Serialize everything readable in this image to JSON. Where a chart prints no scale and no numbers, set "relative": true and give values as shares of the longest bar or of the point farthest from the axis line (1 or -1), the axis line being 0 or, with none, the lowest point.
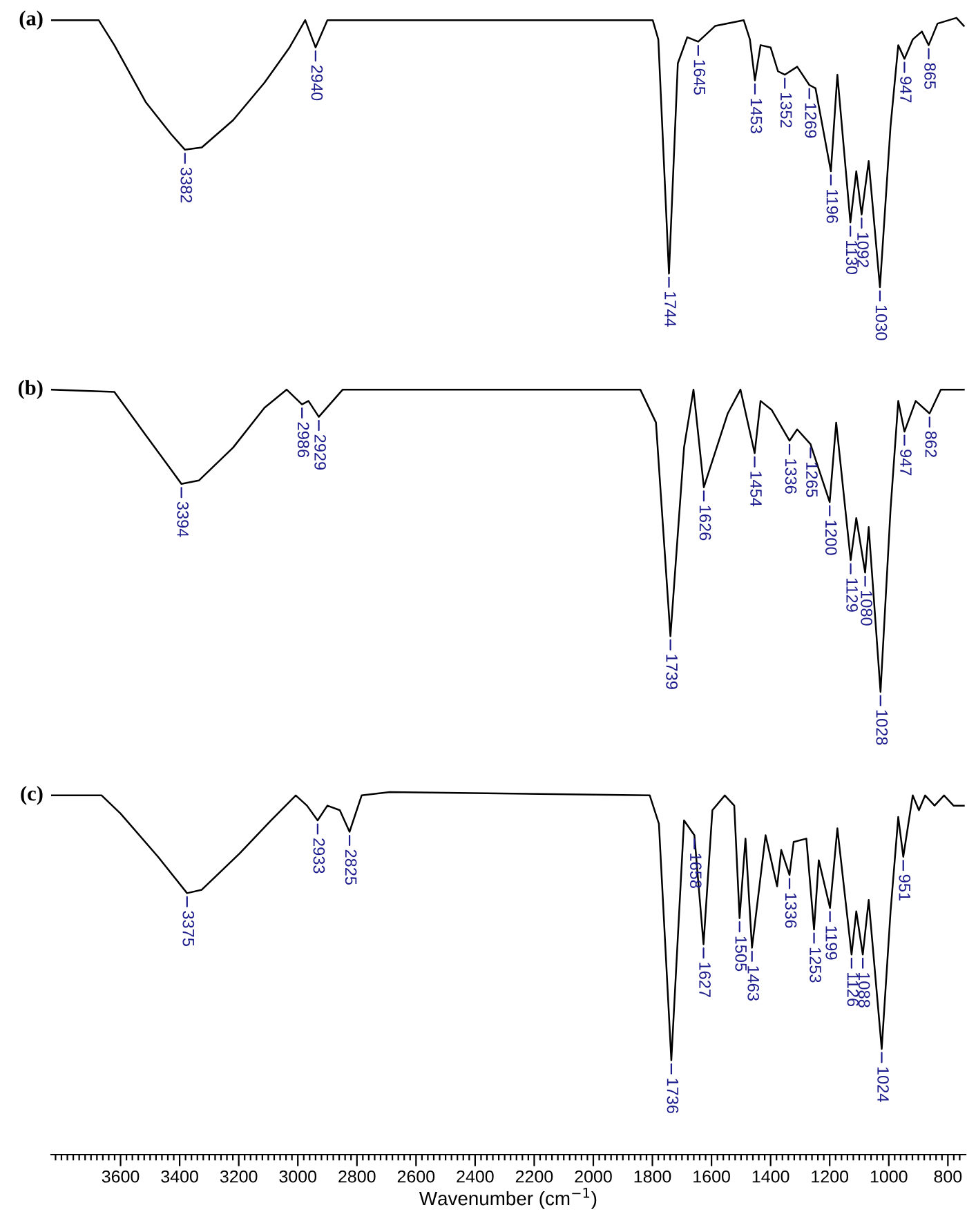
{
  "chart_data": {
    "type": "line",
    "relative": true,
    "tick_labels": "x",
    "grid": false,
    "legend": false,
    "marker": "none",
    "line_style": "solid",
    "xlabel": "Wavenumber (cm$^{−1}$)",
    "xlim": [
      3835,
      740
    ],
    "xticks": [
      {
        "value": 760,
        "label": null
      },
      {
        "value": 780,
        "label": null
      },
      800,
      {
        "value": 820,
        "label": null
      },
      {
        "value": 840,
        "label": null
      },
      {
        "value": 860,
        "label": null
      },
      {
        "value": 880,
        "label": null
      },
      {
        "value": 900,
        "label": null
      },
      {
        "value": 920,
        "label": null
      },
      {
        "value": 940,
        "label": null
      },
      {
        "value": 960,
        "label": null
      },
      {
        "value": 980,
        "label": null
      },
      1000,
      {
        "value": 1020,
        "label": null
      },
      {
        "value": 1040,
        "label": null
      },
      {
        "value": 1060,
        "label": null
      },
      {
        "value": 1080,
        "label": null
      },
      {
        "value": 1100,
        "label": null
      },
      {
        "value": 1120,
        "label": null
      },
      {
        "value": 1140,
        "label": null
      },
      {
        "value": 1160,
        "label": null
      },
      {
        "value": 1180,
        "label": null
      },
      1200,
      {
        "value": 1220,
        "label": null
      },
      {
        "value": 1240,
        "label": null
      },
      {
        "value": 1260,
        "label": null
      },
      {
        "value": 1280,
        "label": null
      },
      {
        "value": 1300,
        "label": null
      },
      {
        "value": 1320,
        "label": null
      },
      {
        "value": 1340,
        "label": null
      },
      {
        "value": 1360,
        "label": null
      },
      {
        "value": 1380,
        "label": null
      },
      1400,
      {
        "value": 1420,
        "label": null
      },
      {
        "value": 1440,
        "label": null
      },
      {
        "value": 1460,
        "label": null
      },
      {
        "value": 1480,
        "label": null
      },
      {
        "value": 1500,
        "label": null
      },
      {
        "value": 1520,
        "label": null
      },
      {
        "value": 1540,
        "label": null
      },
      {
        "value": 1560,
        "label": null
      },
      {
        "value": 1580,
        "label": null
      },
      1600,
      {
        "value": 1620,
        "label": null
      },
      {
        "value": 1640,
        "label": null
      },
      {
        "value": 1660,
        "label": null
      },
      {
        "value": 1680,
        "label": null
      },
      {
        "value": 1700,
        "label": null
      },
      {
        "value": 1720,
        "label": null
      },
      {
        "value": 1740,
        "label": null
      },
      {
        "value": 1760,
        "label": null
      },
      {
        "value": 1780,
        "label": null
      },
      1800,
      {
        "value": 1820,
        "label": null
      },
      {
        "value": 1840,
        "label": null
      },
      {
        "value": 1860,
        "label": null
      },
      {
        "value": 1880,
        "label": null
      },
      {
        "value": 1900,
        "label": null
      },
      {
        "value": 1920,
        "label": null
      },
      {
        "value": 1940,
        "label": null
      },
      {
        "value": 1960,
        "label": null
      },
      {
        "value": 1980,
        "label": null
      },
      2000,
      {
        "value": 2020,
        "label": null
      },
      {
        "value": 2040,
        "label": null
      },
      {
        "value": 2060,
        "label": null
      },
      {
        "value": 2080,
        "label": null
      },
      {
        "value": 2100,
        "label": null
      },
      {
        "value": 2120,
        "label": null
      },
      {
        "value": 2140,
        "label": null
      },
      {
        "value": 2160,
        "label": null
      },
      {
        "value": 2180,
        "label": null
      },
      2200,
      {
        "value": 2220,
        "label": null
      },
      {
        "value": 2240,
        "label": null
      },
      {
        "value": 2260,
        "label": null
      },
      {
        "value": 2280,
        "label": null
      },
      {
        "value": 2300,
        "label": null
      },
      {
        "value": 2320,
        "label": null
      },
      {
        "value": 2340,
        "label": null
      },
      {
        "value": 2360,
        "label": null
      },
      {
        "value": 2380,
        "label": null
      },
      2400,
      {
        "value": 2420,
        "label": null
      },
      {
        "value": 2440,
        "label": null
      },
      {
        "value": 2460,
        "label": null
      },
      {
        "value": 2480,
        "label": null
      },
      {
        "value": 2500,
        "label": null
      },
      {
        "value": 2520,
        "label": null
      },
      {
        "value": 2540,
        "label": null
      },
      {
        "value": 2560,
        "label": null
      },
      {
        "value": 2580,
        "label": null
      },
      2600,
      {
        "value": 2620,
        "label": null
      },
      {
        "value": 2640,
        "label": null
      },
      {
        "value": 2660,
        "label": null
      },
      {
        "value": 2680,
        "label": null
      },
      {
        "value": 2700,
        "label": null
      },
      {
        "value": 2720,
        "label": null
      },
      {
        "value": 2740,
        "label": null
      },
      {
        "value": 2760,
        "label": null
      },
      {
        "value": 2780,
        "label": null
      },
      2800,
      {
        "value": 2820,
        "label": null
      },
      {
        "value": 2840,
        "label": null
      },
      {
        "value": 2860,
        "label": null
      },
      {
        "value": 2880,
        "label": null
      },
      {
        "value": 2900,
        "label": null
      },
      {
        "value": 2920,
        "label": null
      },
      {
        "value": 2940,
        "label": null
      },
      {
        "value": 2960,
        "label": null
      },
      {
        "value": 2980,
        "label": null
      },
      3000,
      {
        "value": 3020,
        "label": null
      },
      {
        "value": 3040,
        "label": null
      },
      {
        "value": 3060,
        "label": null
      },
      {
        "value": 3080,
        "label": null
      },
      {
        "value": 3100,
        "label": null
      },
      {
        "value": 3120,
        "label": null
      },
      {
        "value": 3140,
        "label": null
      },
      {
        "value": 3160,
        "label": null
      },
      {
        "value": 3180,
        "label": null
      },
      3200,
      {
        "value": 3220,
        "label": null
      },
      {
        "value": 3240,
        "label": null
      },
      {
        "value": 3260,
        "label": null
      },
      {
        "value": 3280,
        "label": null
      },
      {
        "value": 3300,
        "label": null
      },
      {
        "value": 3320,
        "label": null
      },
      {
        "value": 3340,
        "label": null
      },
      {
        "value": 3360,
        "label": null
      },
      {
        "value": 3380,
        "label": null
      },
      3400,
      {
        "value": 3420,
        "label": null
      },
      {
        "value": 3440,
        "label": null
      },
      {
        "value": 3460,
        "label": null
      },
      {
        "value": 3480,
        "label": null
      },
      {
        "value": 3500,
        "label": null
      },
      {
        "value": 3520,
        "label": null
      },
      {
        "value": 3540,
        "label": null
      },
      {
        "value": 3560,
        "label": null
      },
      {
        "value": 3580,
        "label": null
      },
      3600,
      {
        "value": 3620,
        "label": null
      },
      {
        "value": 3640,
        "label": null
      },
      {
        "value": 3660,
        "label": null
      },
      {
        "value": 3680,
        "label": null
      },
      {
        "value": 3700,
        "label": null
      },
      {
        "value": 3720,
        "label": null
      },
      {
        "value": 3740,
        "label": null
      },
      {
        "value": 3760,
        "label": null
      },
      {
        "value": 3780,
        "label": null
      },
      {
        "value": 3800,
        "label": null
      },
      {
        "value": 3820,
        "label": null
      }
    ],
    "series": [
      {
        "name": "(a)",
        "color": "#000000",
        "x": [
          3833,
          3674,
          3621,
          3515,
          3430,
          3382,
          3325,
          3219,
          3113,
          3028,
          2975,
          2940,
          2900,
          2520,
          1799,
          1780,
          1744,
          1714,
          1682,
          1645,
          1587,
          1491,
          1470,
          1453,
          1434,
          1400,
          1375,
          1352,
          1310,
          1269,
          1248,
          1196,
          1174,
          1130,
          1110,
          1092,
          1068,
          1030,
          994,
          968,
          947,
          919,
          888,
          865,
          835,
          771,
          746
        ],
        "values": [
          0.998,
          0.998,
          0.976,
          0.926,
          0.898,
          0.884,
          0.886,
          0.91,
          0.943,
          0.974,
          0.998,
          0.974,
          0.998,
          0.998,
          0.998,
          0.981,
          0.775,
          0.96,
          0.983,
          0.979,
          0.993,
          0.998,
          0.981,
          0.945,
          0.976,
          0.974,
          0.953,
          0.95,
          0.957,
          0.941,
          0.938,
          0.865,
          0.95,
          0.82,
          0.865,
          0.827,
          0.874,
          0.763,
          0.905,
          0.976,
          0.964,
          0.981,
          0.988,
          0.976,
          0.995,
          1,
          0.993
        ]
      },
      {
        "name": "(b)",
        "color": "#000000",
        "x": [
          3833,
          3621,
          3515,
          3430,
          3394,
          3335,
          3219,
          3113,
          3038,
          2986,
          2964,
          2929,
          2848,
          1841,
          1788,
          1739,
          1693,
          1661,
          1626,
          1545,
          1502,
          1454,
          1434,
          1396,
          1336,
          1310,
          1265,
          1200,
          1178,
          1129,
          1110,
          1080,
          1068,
          1028,
          994,
          968,
          947,
          909,
          862,
          824,
          746
        ],
        "values": [
          0.673,
          0.671,
          0.633,
          0.603,
          0.59,
          0.593,
          0.622,
          0.657,
          0.673,
          0.66,
          0.663,
          0.649,
          0.673,
          0.673,
          0.644,
          0.456,
          0.622,
          0.673,
          0.587,
          0.652,
          0.673,
          0.617,
          0.663,
          0.655,
          0.628,
          0.638,
          0.625,
          0.574,
          0.644,
          0.523,
          0.56,
          0.512,
          0.552,
          0.407,
          0.568,
          0.663,
          0.636,
          0.663,
          0.652,
          0.673,
          0.673
        ]
      },
      {
        "name": "(c)",
        "color": "#000000",
        "x": [
          3833,
          3664,
          3600,
          3473,
          3375,
          3325,
          3197,
          3091,
          3007,
          2969,
          2933,
          2900,
          2858,
          2825,
          2784,
          2689,
          1809,
          1778,
          1736,
          1693,
          1658,
          1627,
          1597,
          1555,
          1523,
          1505,
          1485,
          1463,
          1417,
          1378,
          1364,
          1336,
          1322,
          1279,
          1253,
          1237,
          1199,
          1174,
          1126,
          1110,
          1088,
          1068,
          1024,
          994,
          968,
          951,
          919,
          898,
          877,
          845,
          813,
          781,
          746
        ],
        "values": [
          0.316,
          0.316,
          0.3,
          0.262,
          0.23,
          0.233,
          0.265,
          0.294,
          0.316,
          0.307,
          0.294,
          0.307,
          0.303,
          0.284,
          0.316,
          0.319,
          0.316,
          0.291,
          0.083,
          0.294,
          0.281,
          0.185,
          0.303,
          0.316,
          0.307,
          0.208,
          0.278,
          0.182,
          0.281,
          0.236,
          0.268,
          0.246,
          0.275,
          0.278,
          0.198,
          0.259,
          0.217,
          0.287,
          0.176,
          0.214,
          0.176,
          0.224,
          0.093,
          0.214,
          0.297,
          0.262,
          0.316,
          0.303,
          0.316,
          0.307,
          0.316,
          0.307,
          0.307
        ]
      }
    ],
    "annotations": [
      {
        "text": "3382",
        "x": 3382,
        "y": 0.884
      },
      {
        "text": "2940",
        "x": 2940,
        "y": 0.974
      },
      {
        "text": "1744",
        "x": 1744,
        "y": 0.775
      },
      {
        "text": "1645",
        "x": 1645,
        "y": 0.979
      },
      {
        "text": "1453",
        "x": 1453,
        "y": 0.945
      },
      {
        "text": "1352",
        "x": 1352,
        "y": 0.95
      },
      {
        "text": "1269",
        "x": 1269,
        "y": 0.941
      },
      {
        "text": "1196",
        "x": 1196,
        "y": 0.865
      },
      {
        "text": "1130",
        "x": 1130,
        "y": 0.82
      },
      {
        "text": "1092",
        "x": 1092,
        "y": 0.827
      },
      {
        "text": "1030",
        "x": 1030,
        "y": 0.763
      },
      {
        "text": "947",
        "x": 947,
        "y": 0.964
      },
      {
        "text": "865",
        "x": 865,
        "y": 0.976
      },
      {
        "text": "3394",
        "x": 3394,
        "y": 0.59
      },
      {
        "text": "2986",
        "x": 2986,
        "y": 0.66
      },
      {
        "text": "2929",
        "x": 2929,
        "y": 0.649
      },
      {
        "text": "1739",
        "x": 1739,
        "y": 0.456
      },
      {
        "text": "1626",
        "x": 1626,
        "y": 0.587
      },
      {
        "text": "1454",
        "x": 1454,
        "y": 0.617
      },
      {
        "text": "1336",
        "x": 1336,
        "y": 0.628
      },
      {
        "text": "1265",
        "x": 1265,
        "y": 0.625
      },
      {
        "text": "1200",
        "x": 1200,
        "y": 0.574
      },
      {
        "text": "1129",
        "x": 1129,
        "y": 0.523
      },
      {
        "text": "1080",
        "x": 1080,
        "y": 0.512
      },
      {
        "text": "1028",
        "x": 1028,
        "y": 0.407
      },
      {
        "text": "947",
        "x": 947,
        "y": 0.636
      },
      {
        "text": "862",
        "x": 862,
        "y": 0.652
      },
      {
        "text": "3375",
        "x": 3375,
        "y": 0.23
      },
      {
        "text": "2933",
        "x": 2933,
        "y": 0.294
      },
      {
        "text": "2825",
        "x": 2825,
        "y": 0.284
      },
      {
        "text": "1736",
        "x": 1736,
        "y": 0.083
      },
      {
        "text": "1658",
        "x": 1658,
        "y": 0.281
      },
      {
        "text": "1627",
        "x": 1627,
        "y": 0.185
      },
      {
        "text": "1505",
        "x": 1505,
        "y": 0.208
      },
      {
        "text": "1463",
        "x": 1463,
        "y": 0.182
      },
      {
        "text": "1336",
        "x": 1336,
        "y": 0.246
      },
      {
        "text": "1253",
        "x": 1253,
        "y": 0.198
      },
      {
        "text": "1199",
        "x": 1199,
        "y": 0.217
      },
      {
        "text": "1126",
        "x": 1126,
        "y": 0.176
      },
      {
        "text": "1088",
        "x": 1088,
        "y": 0.176
      },
      {
        "text": "1024",
        "x": 1024,
        "y": 0.093
      },
      {
        "text": "951",
        "x": 951,
        "y": 0.262
      }
    ]
  }
}
